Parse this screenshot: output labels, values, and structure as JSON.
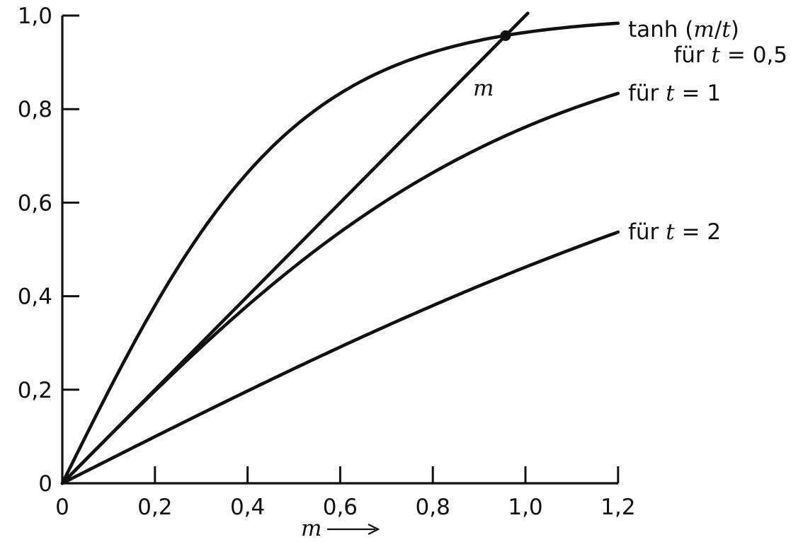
{
  "chart_data": {
    "type": "line",
    "title": "",
    "xlabel": "m",
    "ylabel": "",
    "xlim": [
      0,
      1.2
    ],
    "ylim": [
      0,
      1.0
    ],
    "x_ticks": [
      "0",
      "0,2",
      "0,4",
      "0,6",
      "0,8",
      "1,0",
      "1,2"
    ],
    "y_ticks": [
      "0",
      "0,2",
      "0,4",
      "0,6",
      "0,8",
      "1,0"
    ],
    "grid": false,
    "legend": "none (labels at curve ends)",
    "series": [
      {
        "name": "tanh (m/t) für t = 0,5",
        "label_line1": "tanh (m/t)",
        "label_line2": "für t = 0,5",
        "function": "tanh(m/t)",
        "t": 0.5,
        "x": [
          0,
          0.1,
          0.2,
          0.3,
          0.4,
          0.5,
          0.6,
          0.7,
          0.8,
          0.9,
          1.0,
          1.1,
          1.2
        ],
        "y": [
          0,
          0.197,
          0.38,
          0.537,
          0.664,
          0.762,
          0.834,
          0.885,
          0.922,
          0.947,
          0.964,
          0.976,
          0.984
        ]
      },
      {
        "name": "für t = 1",
        "label_line1": "für t = 1",
        "function": "tanh(m/t)",
        "t": 1,
        "x": [
          0,
          0.1,
          0.2,
          0.3,
          0.4,
          0.5,
          0.6,
          0.7,
          0.8,
          0.9,
          1.0,
          1.1,
          1.2
        ],
        "y": [
          0,
          0.1,
          0.197,
          0.291,
          0.38,
          0.462,
          0.537,
          0.604,
          0.664,
          0.716,
          0.762,
          0.8,
          0.834
        ]
      },
      {
        "name": "für t = 2",
        "label_line1": "für t = 2",
        "function": "tanh(m/t)",
        "t": 2,
        "x": [
          0,
          0.1,
          0.2,
          0.3,
          0.4,
          0.5,
          0.6,
          0.7,
          0.8,
          0.9,
          1.0,
          1.1,
          1.2
        ],
        "y": [
          0,
          0.05,
          0.1,
          0.149,
          0.197,
          0.245,
          0.291,
          0.336,
          0.38,
          0.422,
          0.462,
          0.501,
          0.537
        ]
      },
      {
        "name": "m",
        "label_line1": "m",
        "function": "m",
        "x": [
          0,
          1.0
        ],
        "y": [
          0,
          1.0
        ]
      }
    ],
    "annotations": [
      {
        "type": "point",
        "x": 0.957,
        "y": 0.957,
        "description": "intersection of m and tanh(m/t) for t = 0,5"
      }
    ]
  }
}
